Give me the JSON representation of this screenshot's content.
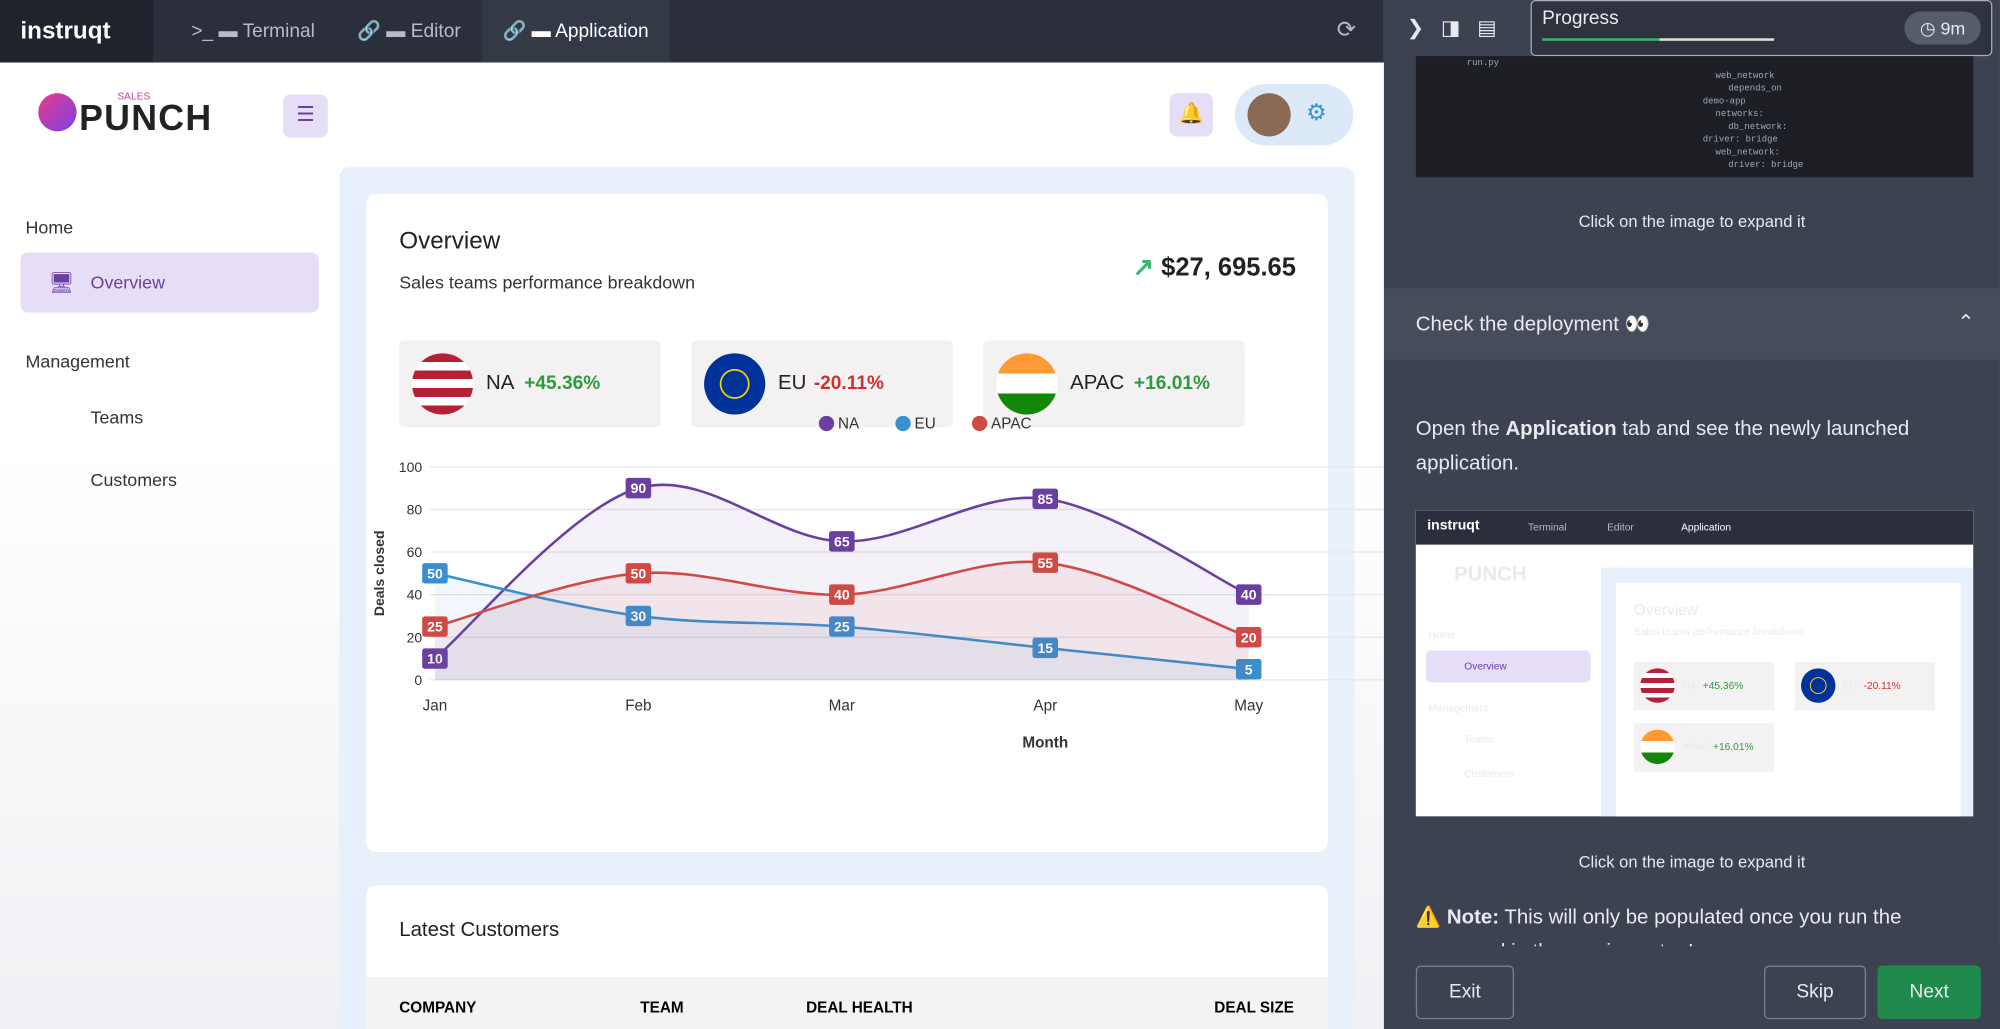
{
  "tabs": {
    "brand": "instruqt",
    "items": [
      "Terminal",
      "Editor",
      "Application"
    ]
  },
  "app": {
    "logo_small": "SALES",
    "logo": "PUNCH",
    "nav": {
      "home": "Home",
      "overview": "Overview",
      "management": "Management",
      "teams": "Teams",
      "customers": "Customers"
    }
  },
  "overview": {
    "title": "Overview",
    "subtitle": "Sales teams performance breakdown",
    "total": "$27, 695.65",
    "regions": [
      {
        "name": "NA",
        "change": "+45.36%"
      },
      {
        "name": "EU",
        "change": "-20.11%"
      },
      {
        "name": "APAC",
        "change": "+16.01%"
      }
    ]
  },
  "chart_data": {
    "type": "line",
    "x_label": "Month",
    "y_label": "Deals closed",
    "categories": [
      "Jan",
      "Feb",
      "Mar",
      "Apr",
      "May"
    ],
    "series": [
      {
        "name": "NA",
        "color": "#6a3fa0",
        "values": [
          10,
          90,
          65,
          85,
          40
        ]
      },
      {
        "name": "EU",
        "color": "#3a8fd0",
        "values": [
          50,
          30,
          25,
          15,
          5
        ]
      },
      {
        "name": "APAC",
        "color": "#d04a45",
        "values": [
          25,
          50,
          40,
          55,
          20
        ]
      }
    ],
    "ylim": [
      0,
      100
    ],
    "yticks": [
      0,
      20,
      40,
      60,
      80,
      100
    ],
    "legend": "top"
  },
  "customers": {
    "title": "Latest Customers",
    "columns": [
      "COMPANY",
      "TEAM",
      "DEAL HEALTH",
      "DEAL SIZE"
    ]
  },
  "sidebar": {
    "progress": "Progress",
    "timer": "9m",
    "code": [
      "run.py",
      "web_network",
      "depends_on",
      "demo-app",
      "networks:",
      "db_network:",
      "driver: bridge",
      "web_network:",
      "driver: bridge"
    ],
    "expand_hint": "Click on the image to expand it",
    "section": "Check the deployment 👀",
    "instruction": {
      "before": "Open the ",
      "bold": "Application",
      "after": " tab and see the newly launched application."
    },
    "note": {
      "label": "Note:",
      "text": "This will only be populated once you run the command in the previous step!"
    },
    "buttons": [
      "Exit",
      "Skip",
      "Next"
    ]
  }
}
